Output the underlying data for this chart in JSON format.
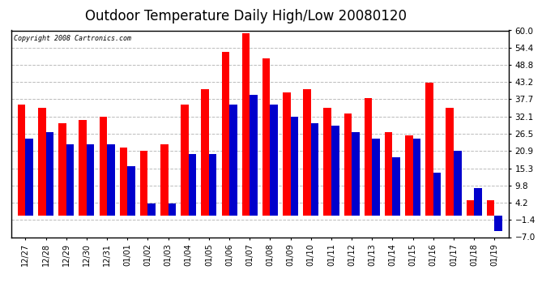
{
  "title": "Outdoor Temperature Daily High/Low 20080120",
  "copyright_text": "Copyright 2008 Cartronics.com",
  "labels": [
    "12/27",
    "12/28",
    "12/29",
    "12/30",
    "12/31",
    "01/01",
    "01/02",
    "01/03",
    "01/04",
    "01/05",
    "01/06",
    "01/07",
    "01/08",
    "01/09",
    "01/10",
    "01/11",
    "01/12",
    "01/13",
    "01/14",
    "01/15",
    "01/16",
    "01/17",
    "01/18",
    "01/19"
  ],
  "highs": [
    36,
    35,
    30,
    31,
    32,
    22,
    21,
    23,
    36,
    41,
    53,
    59,
    51,
    40,
    41,
    35,
    33,
    38,
    27,
    26,
    43,
    35,
    5,
    5
  ],
  "lows": [
    25,
    27,
    23,
    23,
    23,
    16,
    4,
    4,
    20,
    20,
    36,
    39,
    36,
    32,
    30,
    29,
    27,
    25,
    19,
    25,
    14,
    21,
    9,
    -5
  ],
  "ylim": [
    -7.0,
    60.0
  ],
  "yticks": [
    -7.0,
    -1.4,
    4.2,
    9.8,
    15.3,
    20.9,
    26.5,
    32.1,
    37.7,
    43.2,
    48.8,
    54.4,
    60.0
  ],
  "high_color": "#ff0000",
  "low_color": "#0000cc",
  "background_color": "#ffffff",
  "grid_color": "#bbbbbb",
  "title_fontsize": 12,
  "bar_width": 0.38
}
